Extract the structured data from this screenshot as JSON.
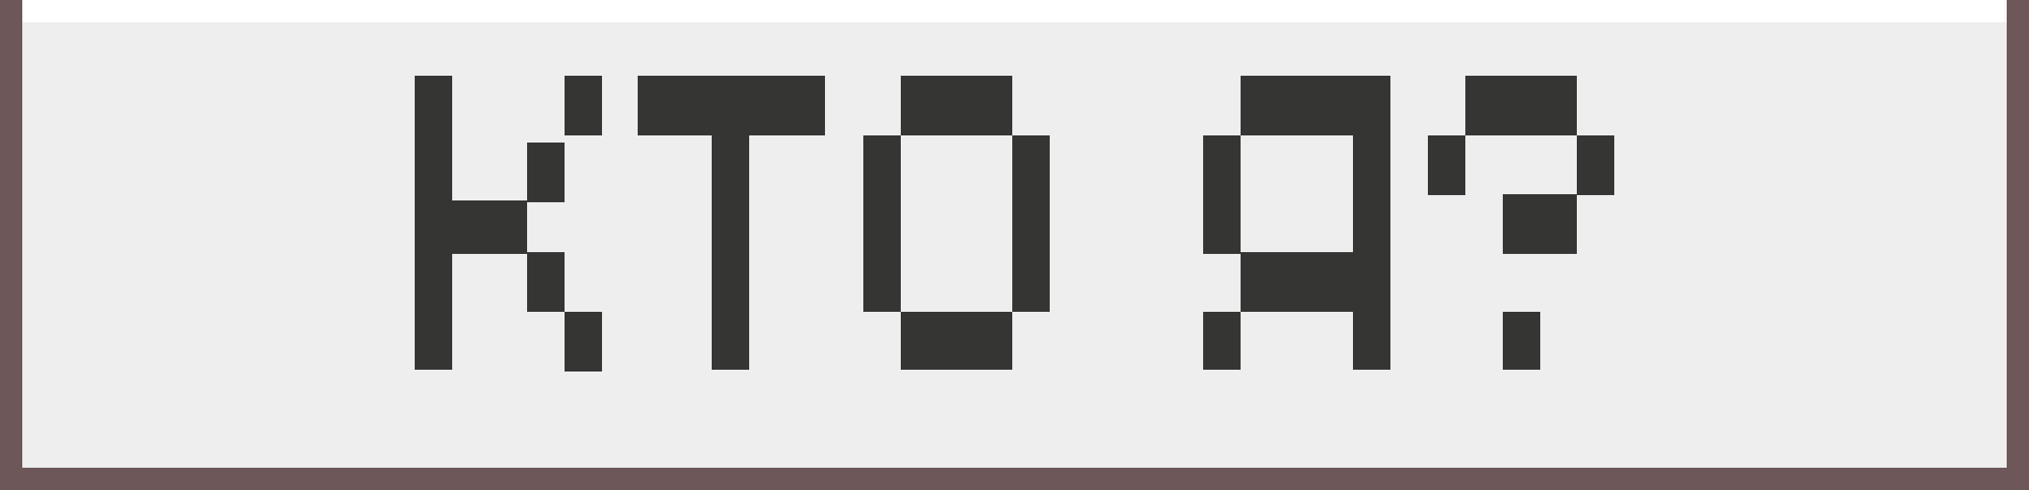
{
  "banner": {
    "text": "КТО Я?"
  },
  "colors": {
    "border": "#6d5759",
    "background": "#eeeeee",
    "top_strip": "#ffffff",
    "pixel": "#353533"
  }
}
